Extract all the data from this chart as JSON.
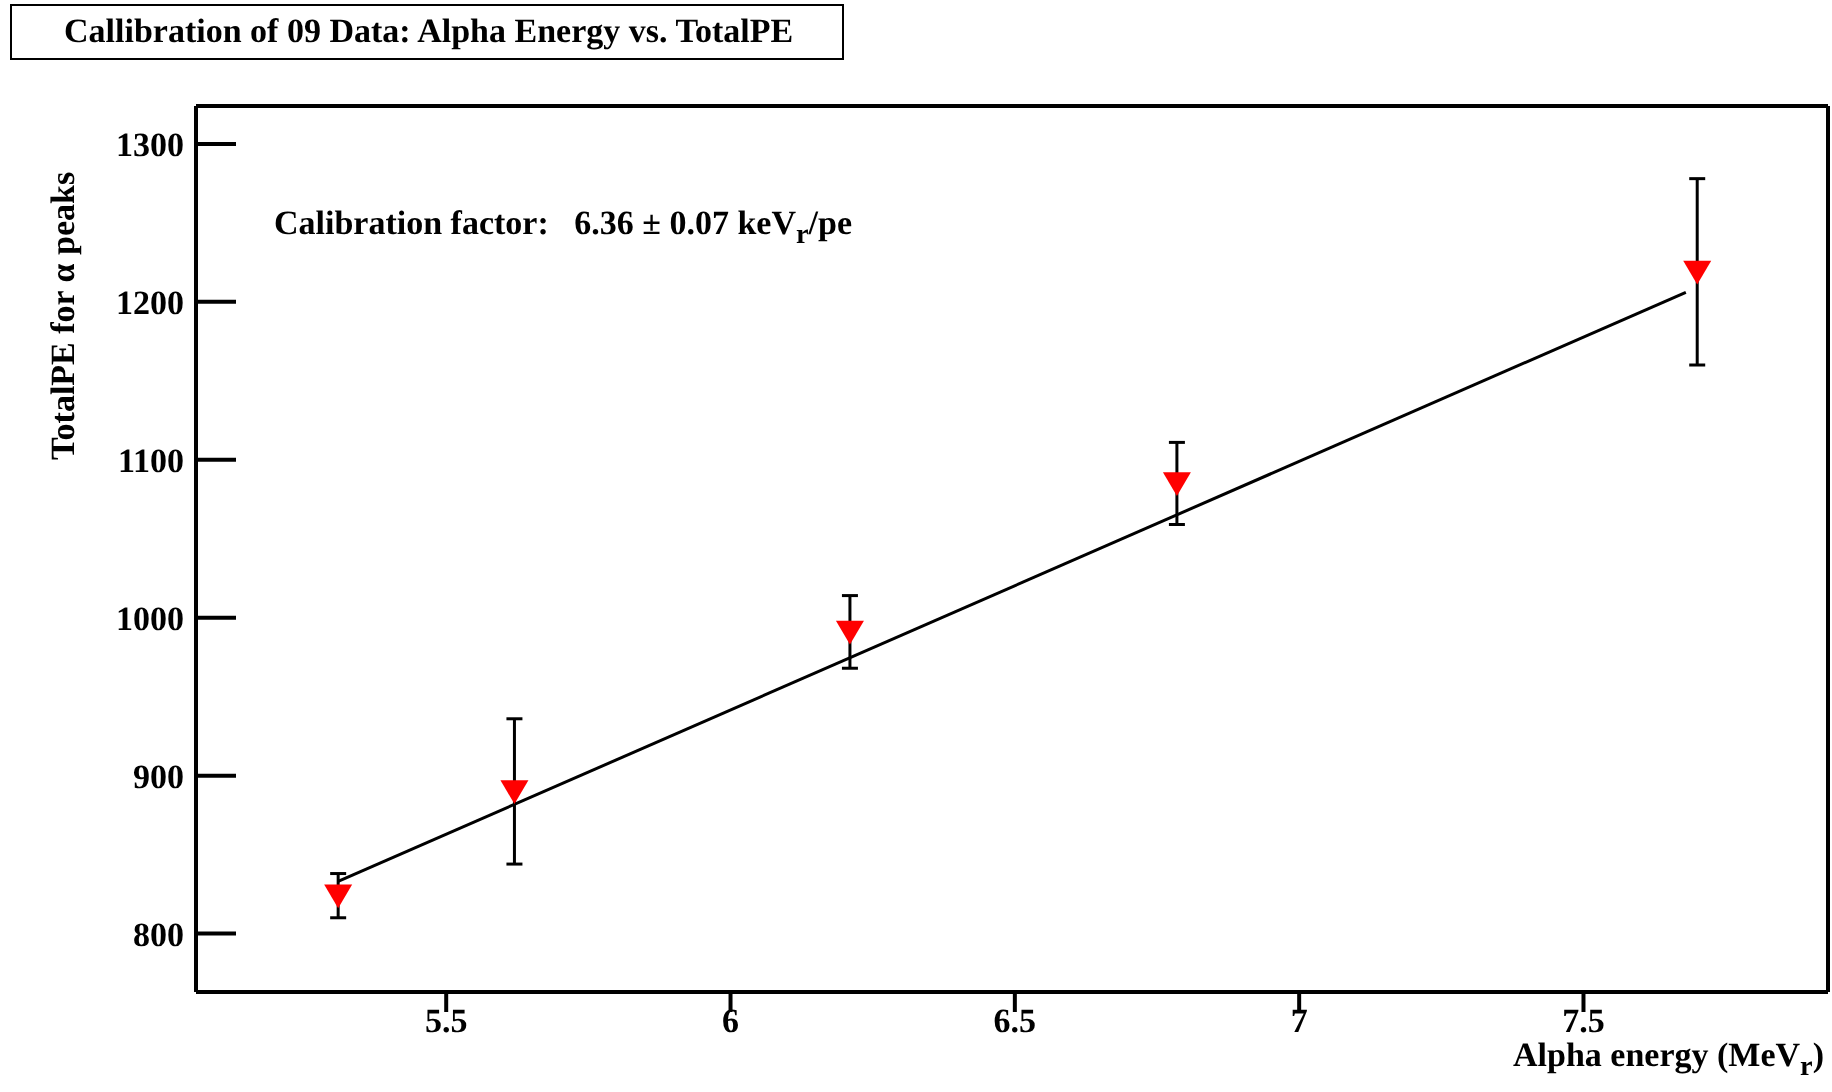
{
  "chart_data": {
    "type": "scatter",
    "title": "Callibration of 09 Data: Alpha Energy vs. TotalPE",
    "xlabel": "Alpha energy (MeV$_{r}$)",
    "ylabel": "TotalPE for α peaks",
    "annotations": [
      "Calibration factor:   6.36 ± 0.07 keV$_{r}$/pe"
    ],
    "series": [
      {
        "type": "scatter",
        "color": "#ff0000",
        "marker": "triangle",
        "x": [
          5.31,
          5.62,
          6.21,
          6.785,
          7.7
        ],
        "values": [
          824,
          890,
          991,
          1085,
          1219
        ],
        "errors": [
          14,
          46,
          23,
          26,
          59
        ]
      },
      {
        "type": "line",
        "color": "#000000",
        "marker": "none",
        "x": [
          5.31,
          7.68
        ],
        "values": [
          833,
          1206
        ]
      }
    ],
    "xlim": [
      5.06,
      7.93
    ],
    "xticks": [
      5.5,
      6,
      6.5,
      7,
      7.5
    ],
    "ylim": [
      763,
      1324
    ],
    "yticks": [
      800,
      900,
      1000,
      1100,
      1200,
      1300
    ],
    "grid": false,
    "legend": false
  }
}
